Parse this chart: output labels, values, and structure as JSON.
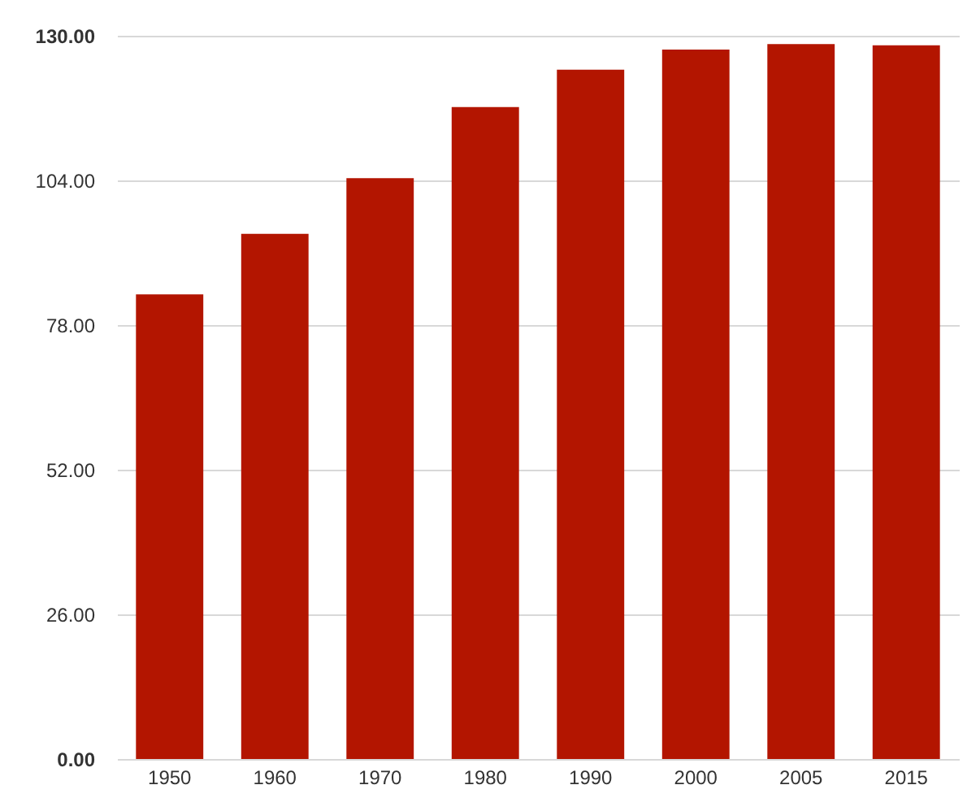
{
  "chart_data": {
    "type": "bar",
    "categories": [
      "1950",
      "1960",
      "1970",
      "1980",
      "1990",
      "2000",
      "2005",
      "2015"
    ],
    "values": [
      83.5,
      94.4,
      104.4,
      117.2,
      123.9,
      127.5,
      128.5,
      128.3
    ],
    "color": "#b31500",
    "ylim": [
      0,
      130
    ],
    "yticks": [
      {
        "value": 0,
        "label": "0.00"
      },
      {
        "value": 26,
        "label": "26.00"
      },
      {
        "value": 52,
        "label": "52.00"
      },
      {
        "value": 78,
        "label": "78.00"
      },
      {
        "value": 104,
        "label": "104.00"
      },
      {
        "value": 130,
        "label": "130.00"
      }
    ],
    "grid": "y"
  }
}
